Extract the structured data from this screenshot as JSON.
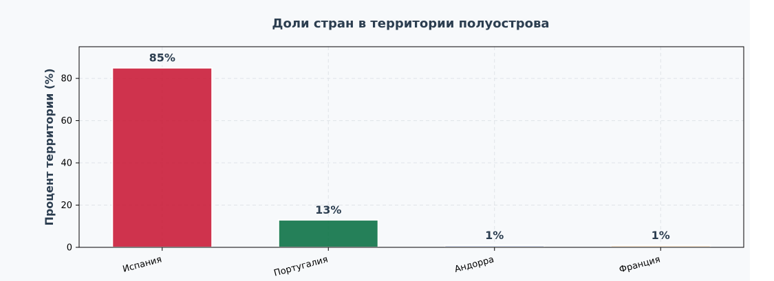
{
  "chart_data": {
    "type": "bar",
    "title": "Доли стран в территории полуострова",
    "xlabel": "",
    "ylabel": "Процент территории (%)",
    "categories": [
      "Испания",
      "Португалия",
      "Андорра",
      "Франция"
    ],
    "values": [
      85,
      13,
      1,
      1
    ],
    "value_labels": [
      "85%",
      "13%",
      "1%",
      "1%"
    ],
    "colors": [
      "#c8102e",
      "#006b3c",
      "#c9d4ea",
      "#fde2c4"
    ],
    "ylim": [
      0,
      95
    ],
    "yticks": [
      0,
      20,
      40,
      60,
      80
    ],
    "ytick_labels": [
      "0",
      "20",
      "40",
      "60",
      "80"
    ],
    "grid": true,
    "legend": "none"
  }
}
